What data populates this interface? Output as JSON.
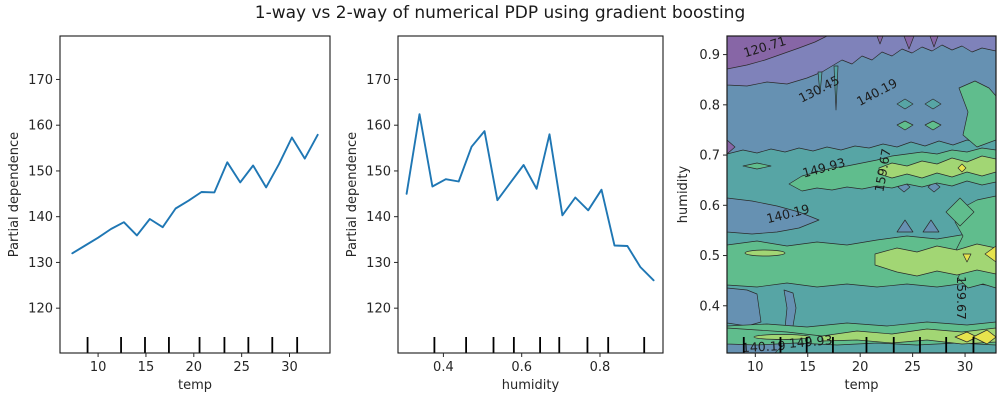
{
  "title": "1-way vs 2-way of numerical PDP using gradient boosting",
  "chart_data": [
    {
      "type": "line",
      "name": "pdp-temp",
      "xlabel": "temp",
      "ylabel": "Partial dependence",
      "line_color": "#1f77b4",
      "xlim": [
        6.02,
        34.23
      ],
      "ylim": [
        110.2,
        179.5
      ],
      "xticks": [
        10,
        15,
        20,
        25,
        30
      ],
      "xtick_labels": [
        "10",
        "15",
        "20",
        "25",
        "30"
      ],
      "yticks": [
        120,
        130,
        140,
        150,
        160,
        170
      ],
      "ytick_labels": [
        "120",
        "130",
        "140",
        "150",
        "160",
        "170"
      ],
      "x": [
        7.3,
        8.65,
        10.0,
        11.35,
        12.7,
        14.05,
        15.4,
        16.75,
        18.1,
        19.45,
        20.8,
        22.15,
        23.5,
        24.85,
        26.2,
        27.55,
        28.9,
        30.25,
        31.6,
        32.95
      ],
      "y": [
        132.0,
        133.7,
        135.4,
        137.3,
        138.8,
        135.9,
        139.5,
        137.7,
        141.8,
        143.5,
        145.4,
        145.3,
        151.9,
        147.5,
        151.2,
        146.4,
        151.5,
        157.3,
        152.7,
        157.9
      ],
      "decile_rug_x": [
        8.9,
        12.4,
        14.9,
        17.4,
        20.6,
        23.2,
        25.7,
        28.2,
        30.8
      ]
    },
    {
      "type": "line",
      "name": "pdp-humidity",
      "xlabel": "humidity",
      "ylabel": "Partial dependence",
      "line_color": "#1f77b4",
      "xlim": [
        0.284,
        0.961
      ],
      "ylim": [
        110.2,
        179.5
      ],
      "xticks": [
        0.4,
        0.6,
        0.8
      ],
      "xtick_labels": [
        "0.4",
        "0.6",
        "0.8"
      ],
      "yticks": [
        120,
        130,
        140,
        150,
        160,
        170
      ],
      "ytick_labels": [
        "120",
        "130",
        "140",
        "150",
        "160",
        "170"
      ],
      "x": [
        0.306,
        0.339,
        0.372,
        0.406,
        0.439,
        0.472,
        0.505,
        0.538,
        0.571,
        0.605,
        0.638,
        0.671,
        0.704,
        0.737,
        0.77,
        0.804,
        0.837,
        0.87,
        0.903,
        0.937
      ],
      "y": [
        145.0,
        162.4,
        146.6,
        148.2,
        147.7,
        155.3,
        158.7,
        143.6,
        147.4,
        151.3,
        146.1,
        158.0,
        140.3,
        144.2,
        141.4,
        145.9,
        133.7,
        133.6,
        129.0,
        126.1
      ],
      "decile_rug_x": [
        0.377,
        0.458,
        0.528,
        0.58,
        0.647,
        0.696,
        0.768,
        0.821,
        0.913
      ]
    },
    {
      "type": "contour",
      "name": "pdp-2way-temp-humidity",
      "xlabel": "temp",
      "ylabel": "humidity",
      "xlim": [
        7.3,
        32.95
      ],
      "ylim": [
        0.306,
        0.937
      ],
      "xticks": [
        10,
        15,
        20,
        25,
        30
      ],
      "xtick_labels": [
        "10",
        "15",
        "20",
        "25",
        "30"
      ],
      "yticks": [
        0.4,
        0.5,
        0.6,
        0.7,
        0.8,
        0.9
      ],
      "ytick_labels": [
        "0.4",
        "0.5",
        "0.6",
        "0.7",
        "0.8",
        "0.9"
      ],
      "levels": [
        120.71,
        130.45,
        140.19,
        149.93,
        159.67
      ],
      "colormap": "viridis",
      "band_colors": {
        "below_120.71": "#8766a6",
        "120.71_130.45": "#7f82ba",
        "130.45_140.19": "#6691b2",
        "140.19_149.93": "#57a5a5",
        "149.93_159.67": "#60bd8d",
        "159.67_169.41": "#a2d674",
        "above_169.41": "#e7e34d"
      },
      "clabels": [
        {
          "text": "120.71"
        },
        {
          "text": "130.45"
        },
        {
          "text": "140.19"
        },
        {
          "text": "149.93"
        },
        {
          "text": "159.67"
        },
        {
          "text": "140.19"
        },
        {
          "text": "159.67"
        },
        {
          "text": "149.93"
        },
        {
          "text": "140.19"
        }
      ],
      "decile_rug_x": [
        8.9,
        12.4,
        14.9,
        17.4,
        20.6,
        23.2,
        25.7,
        28.2,
        30.8
      ],
      "grid": {
        "note": "approximate partial dependence values; values[i][j] = PD at humidity[i], temp[j]",
        "temp": [
          8,
          11,
          14,
          17,
          20,
          23,
          26,
          29,
          32
        ],
        "humidity": [
          0.33,
          0.42,
          0.5,
          0.58,
          0.67,
          0.75,
          0.83,
          0.91
        ],
        "values": [
          [
            147,
            150,
            151,
            152,
            155,
            157,
            158,
            162,
            160
          ],
          [
            142,
            143,
            141,
            143,
            144,
            147,
            148,
            152,
            155
          ],
          [
            144,
            147,
            146,
            147,
            149,
            153,
            154,
            158,
            162
          ],
          [
            138,
            140,
            139,
            142,
            144,
            146,
            147,
            151,
            153
          ],
          [
            143,
            148,
            150,
            149,
            152,
            160,
            161,
            161,
            163
          ],
          [
            130,
            133,
            135,
            136,
            137,
            138,
            139,
            143,
            144
          ],
          [
            126,
            128,
            130,
            133,
            136,
            137,
            137,
            140,
            142
          ],
          [
            118,
            122,
            125,
            126,
            126,
            127,
            127,
            128,
            130
          ]
        ]
      }
    }
  ]
}
